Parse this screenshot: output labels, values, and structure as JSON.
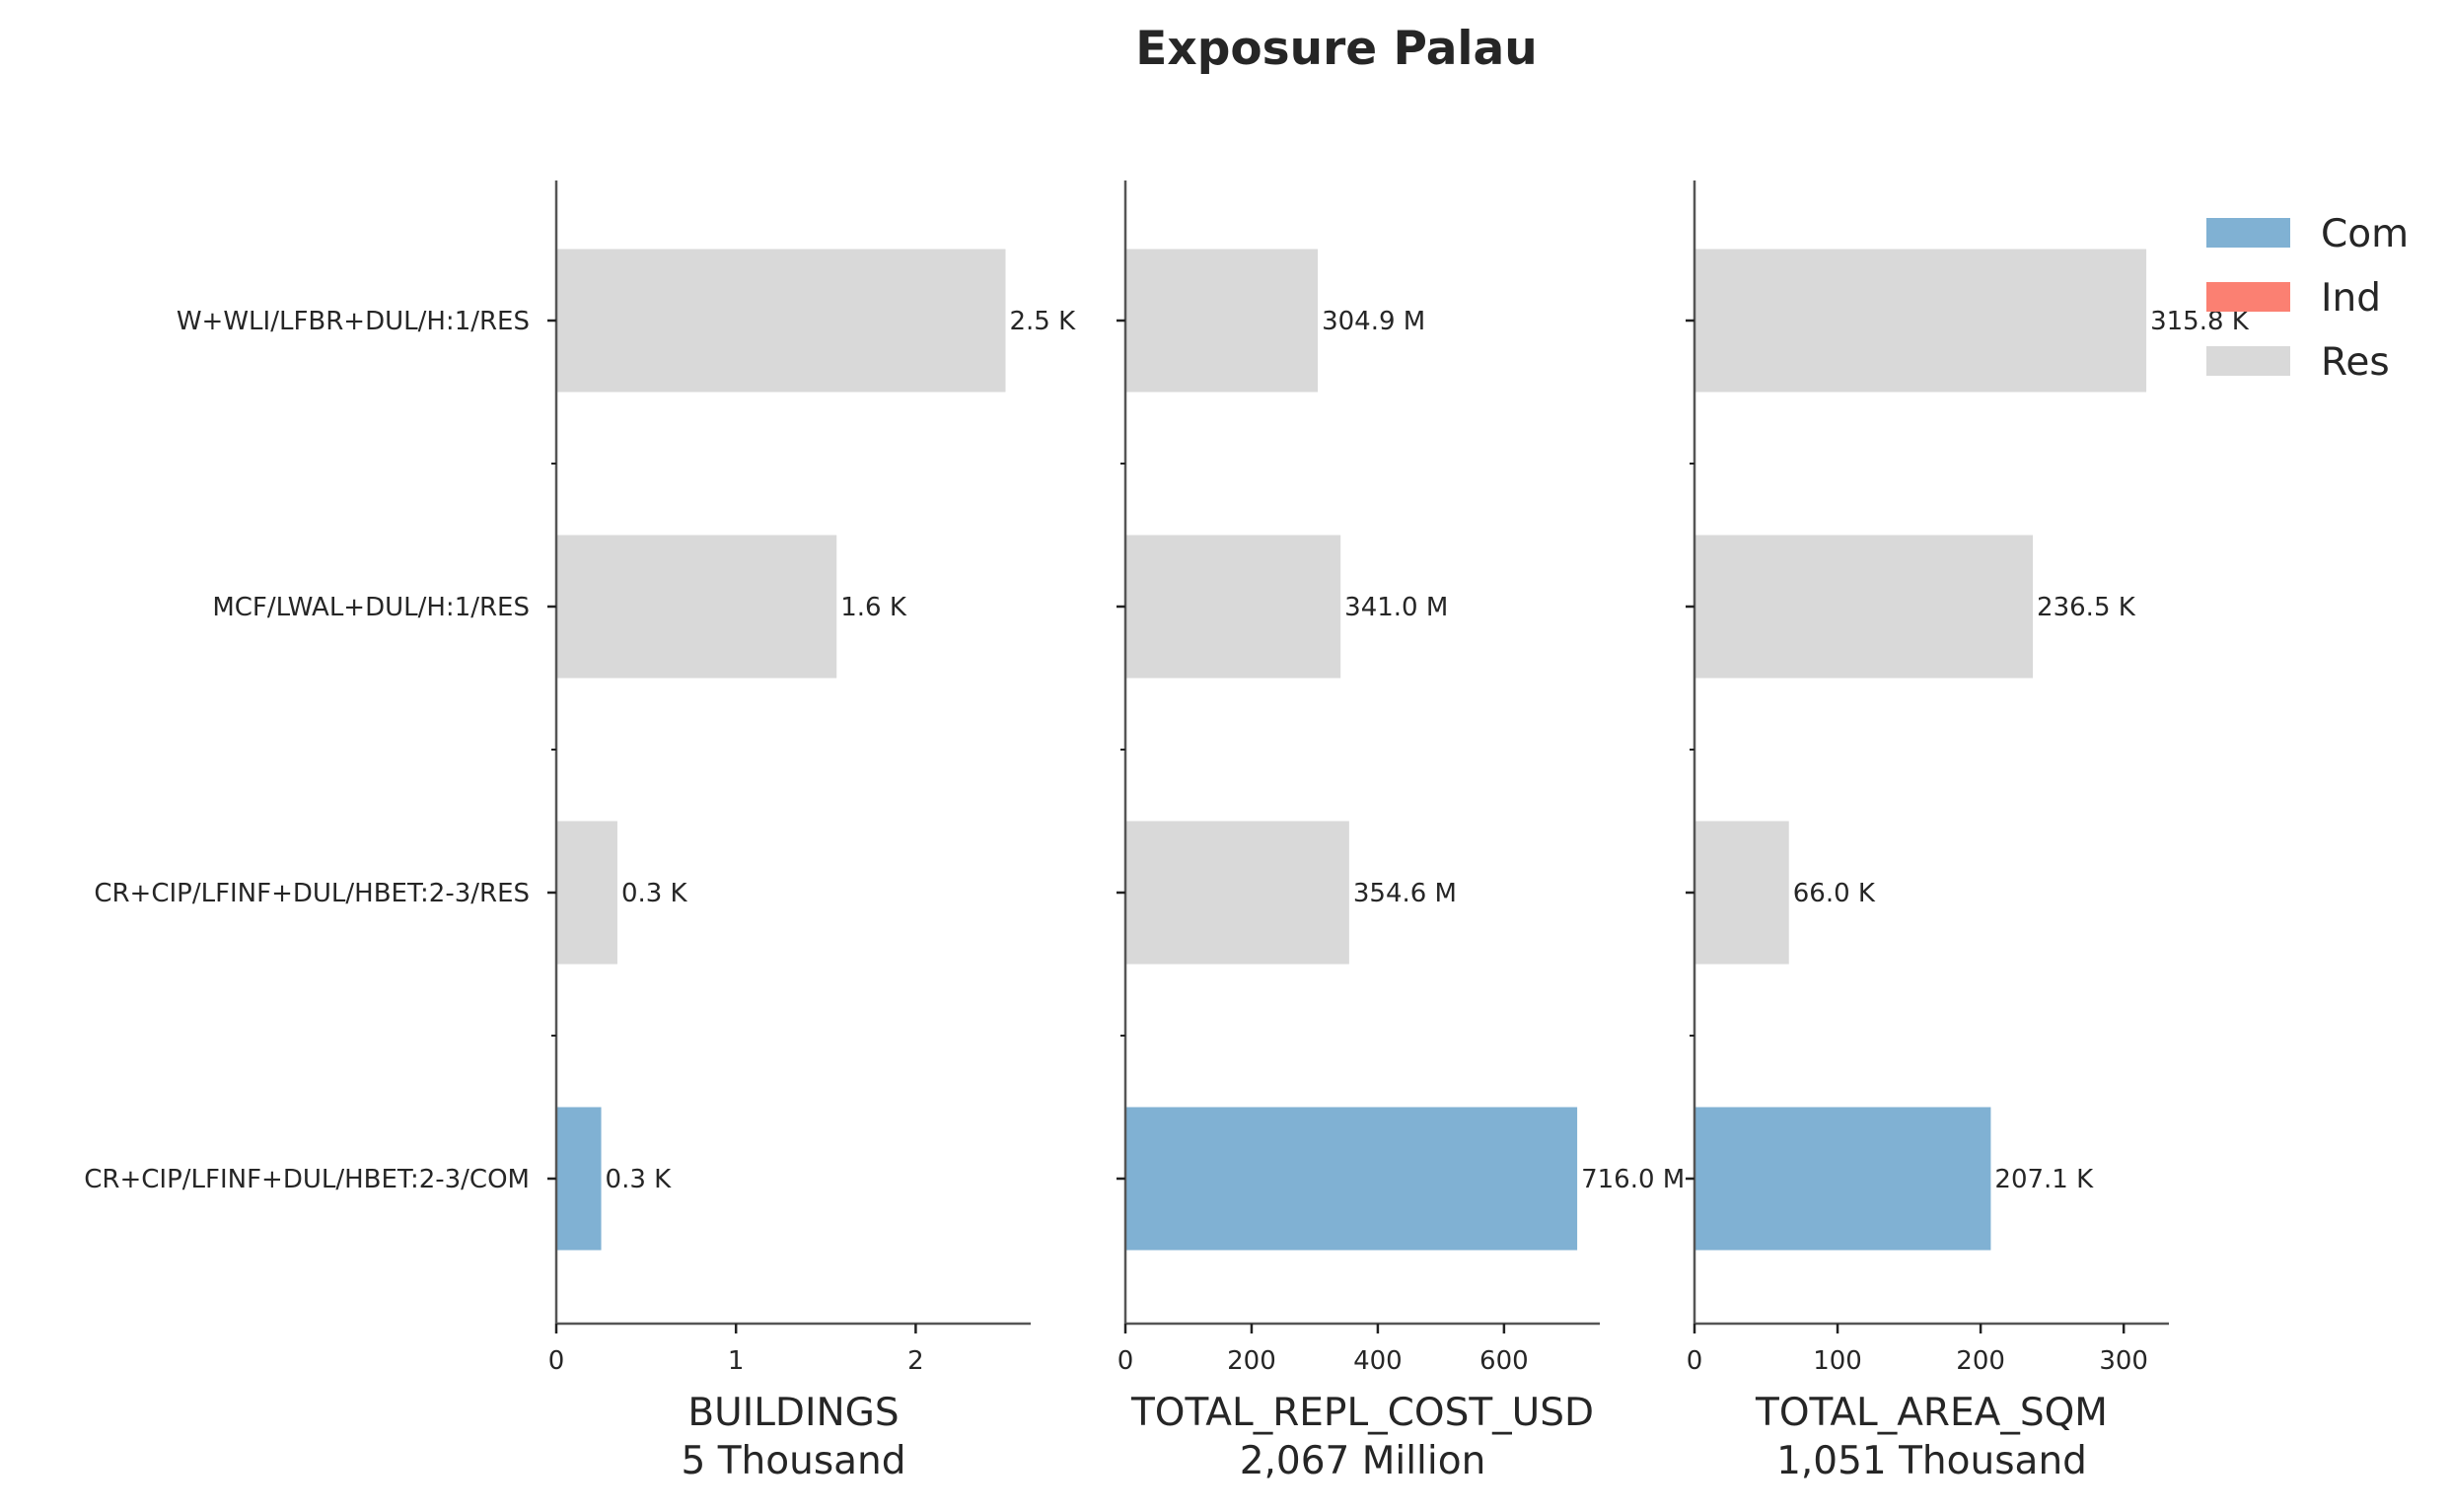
{
  "chart_data": {
    "type": "bar",
    "orientation": "horizontal",
    "title": "Exposure Palau",
    "categories": [
      "W+WLI/LFBR+DUL/H:1/RES",
      "MCF/LWAL+DUL/H:1/RES",
      "CR+CIP/LFINF+DUL/HBET:2-3/RES",
      "CR+CIP/LFINF+DUL/HBET:2-3/COM"
    ],
    "category_occupancy": [
      "Res",
      "Res",
      "Res",
      "Com"
    ],
    "legend": {
      "placement": "top-right",
      "entries": [
        {
          "label": "Com",
          "color": "#80b1d3"
        },
        {
          "label": "Ind",
          "color": "#fb8072"
        },
        {
          "label": "Res",
          "color": "#d9d9d9"
        }
      ]
    },
    "panels": [
      {
        "xlabel": "BUILDINGS",
        "subtitle": "5 Thousand",
        "values": [
          2.5,
          1.56,
          0.34,
          0.25
        ],
        "data_labels": [
          "2.5 K",
          "1.6 K",
          "0.3 K",
          "0.3 K"
        ],
        "xlim": [
          0,
          2.64
        ],
        "ticks": [
          0,
          1,
          2
        ],
        "tick_labels": [
          "0",
          "1",
          "2"
        ]
      },
      {
        "xlabel": "TOTAL_REPL_COST_USD",
        "subtitle": "2,067 Million",
        "values": [
          304.9,
          341.0,
          354.6,
          716.0
        ],
        "data_labels": [
          "304.9 M",
          "341.0 M",
          "354.6 M",
          "716.0 M"
        ],
        "xlim": [
          0,
          751.8
        ],
        "ticks": [
          0,
          200,
          400,
          600
        ],
        "tick_labels": [
          "0",
          "200",
          "400",
          "600"
        ]
      },
      {
        "xlabel": "TOTAL_AREA_SQM",
        "subtitle": "1,051 Thousand",
        "values": [
          315.8,
          236.5,
          66.0,
          207.1
        ],
        "data_labels": [
          "315.8 K",
          "236.5 K",
          "66.0 K",
          "207.1 K"
        ],
        "xlim": [
          0,
          331.6
        ],
        "ticks": [
          0,
          100,
          200,
          300
        ],
        "tick_labels": [
          "0",
          "100",
          "200",
          "300"
        ]
      }
    ],
    "grid": false
  }
}
